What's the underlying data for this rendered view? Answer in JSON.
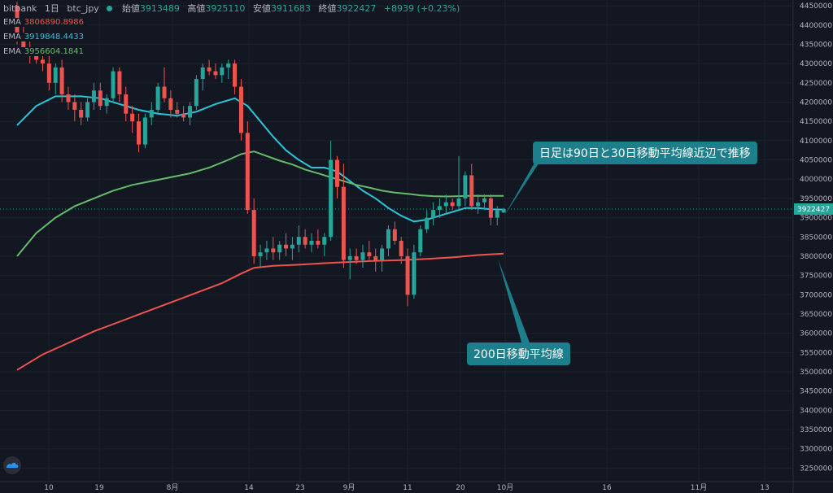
{
  "header": {
    "symbol": "bitbank",
    "interval": "1日",
    "pair": "btc_jpy",
    "open_label": "始値",
    "open": "3913489",
    "high_label": "高値",
    "high": "3925110",
    "low_label": "安値",
    "low": "3911683",
    "close_label": "終値",
    "close": "3922427",
    "change": "+8939 (+0.23%)"
  },
  "ema": [
    {
      "label": "EMA",
      "value": "3806890.8986",
      "color": "#ef5350"
    },
    {
      "label": "EMA",
      "value": "3919848.4433",
      "color": "#26c6da"
    },
    {
      "label": "EMA",
      "value": "3956604.1841",
      "color": "#66bb6a"
    }
  ],
  "annotations": {
    "top": "日足は90日と30日移動平均線近辺で推移",
    "bottom": "200日移動平均線"
  },
  "price_tag": "3922427",
  "chart_data": {
    "type": "candlestick",
    "x_ticks": [
      "10",
      "19",
      "8月",
      "14",
      "23",
      "9月",
      "11",
      "20",
      "10月",
      "16",
      "11月",
      "13"
    ],
    "y_ticks": [
      3250000,
      3300000,
      3350000,
      3400000,
      3450000,
      3500000,
      3550000,
      3600000,
      3650000,
      3700000,
      3750000,
      3800000,
      3850000,
      3900000,
      3950000,
      4000000,
      4050000,
      4100000,
      4150000,
      4200000,
      4250000,
      4300000,
      4350000,
      4400000,
      4450000
    ],
    "ylim": [
      3215000,
      4465000
    ],
    "up_color": "#26a69a",
    "down_color": "#ef5350",
    "candles": [
      [
        4450000,
        4460000,
        4350000,
        4380000
      ],
      [
        4380000,
        4400000,
        4320000,
        4330000
      ],
      [
        4330000,
        4360000,
        4300000,
        4320000
      ],
      [
        4320000,
        4340000,
        4300000,
        4310000
      ],
      [
        4310000,
        4320000,
        4280000,
        4300000
      ],
      [
        4300000,
        4330000,
        4230000,
        4250000
      ],
      [
        4250000,
        4300000,
        4220000,
        4290000
      ],
      [
        4290000,
        4310000,
        4200000,
        4220000
      ],
      [
        4220000,
        4240000,
        4180000,
        4200000
      ],
      [
        4200000,
        4220000,
        4150000,
        4180000
      ],
      [
        4180000,
        4200000,
        4140000,
        4160000
      ],
      [
        4160000,
        4210000,
        4150000,
        4200000
      ],
      [
        4200000,
        4250000,
        4180000,
        4230000
      ],
      [
        4230000,
        4250000,
        4180000,
        4190000
      ],
      [
        4190000,
        4220000,
        4170000,
        4210000
      ],
      [
        4210000,
        4290000,
        4200000,
        4280000
      ],
      [
        4280000,
        4290000,
        4200000,
        4220000
      ],
      [
        4220000,
        4240000,
        4150000,
        4170000
      ],
      [
        4170000,
        4190000,
        4120000,
        4150000
      ],
      [
        4150000,
        4170000,
        4070000,
        4090000
      ],
      [
        4090000,
        4170000,
        4080000,
        4160000
      ],
      [
        4160000,
        4200000,
        4140000,
        4180000
      ],
      [
        4180000,
        4250000,
        4170000,
        4240000
      ],
      [
        4240000,
        4290000,
        4200000,
        4210000
      ],
      [
        4210000,
        4230000,
        4160000,
        4180000
      ],
      [
        4180000,
        4200000,
        4160000,
        4170000
      ],
      [
        4170000,
        4190000,
        4150000,
        4160000
      ],
      [
        4160000,
        4200000,
        4140000,
        4190000
      ],
      [
        4190000,
        4270000,
        4180000,
        4260000
      ],
      [
        4260000,
        4300000,
        4230000,
        4290000
      ],
      [
        4290000,
        4310000,
        4270000,
        4280000
      ],
      [
        4280000,
        4300000,
        4260000,
        4270000
      ],
      [
        4270000,
        4300000,
        4250000,
        4290000
      ],
      [
        4290000,
        4310000,
        4260000,
        4300000
      ],
      [
        4300000,
        4310000,
        4220000,
        4240000
      ],
      [
        4240000,
        4260000,
        4100000,
        4120000
      ],
      [
        4120000,
        4150000,
        3910000,
        3920000
      ],
      [
        3920000,
        3950000,
        3780000,
        3800000
      ],
      [
        3800000,
        3830000,
        3770000,
        3810000
      ],
      [
        3810000,
        3840000,
        3790000,
        3820000
      ],
      [
        3820000,
        3850000,
        3790000,
        3810000
      ],
      [
        3810000,
        3840000,
        3790000,
        3830000
      ],
      [
        3830000,
        3860000,
        3800000,
        3820000
      ],
      [
        3820000,
        3850000,
        3790000,
        3830000
      ],
      [
        3830000,
        3880000,
        3810000,
        3850000
      ],
      [
        3850000,
        3870000,
        3820000,
        3830000
      ],
      [
        3830000,
        3860000,
        3810000,
        3840000
      ],
      [
        3840000,
        3870000,
        3820000,
        3830000
      ],
      [
        3830000,
        3860000,
        3800000,
        3850000
      ],
      [
        3850000,
        4100000,
        3840000,
        4050000
      ],
      [
        4050000,
        4060000,
        3950000,
        3980000
      ],
      [
        3980000,
        4040000,
        3770000,
        3790000
      ],
      [
        3790000,
        3820000,
        3740000,
        3800000
      ],
      [
        3800000,
        3820000,
        3780000,
        3790000
      ],
      [
        3790000,
        3830000,
        3770000,
        3810000
      ],
      [
        3810000,
        3840000,
        3790000,
        3800000
      ],
      [
        3800000,
        3820000,
        3760000,
        3790000
      ],
      [
        3790000,
        3830000,
        3760000,
        3820000
      ],
      [
        3820000,
        3880000,
        3800000,
        3870000
      ],
      [
        3870000,
        3890000,
        3830000,
        3840000
      ],
      [
        3840000,
        3850000,
        3780000,
        3800000
      ],
      [
        3800000,
        3820000,
        3670000,
        3700000
      ],
      [
        3700000,
        3830000,
        3690000,
        3810000
      ],
      [
        3810000,
        3880000,
        3800000,
        3870000
      ],
      [
        3870000,
        3920000,
        3860000,
        3900000
      ],
      [
        3900000,
        3940000,
        3880000,
        3920000
      ],
      [
        3920000,
        3950000,
        3900000,
        3930000
      ],
      [
        3930000,
        3960000,
        3910000,
        3940000
      ],
      [
        3940000,
        3950000,
        3920000,
        3930000
      ],
      [
        3930000,
        4060000,
        3920000,
        3950000
      ],
      [
        3950000,
        4020000,
        3930000,
        4010000
      ],
      [
        4010000,
        4040000,
        3920000,
        3930000
      ],
      [
        3930000,
        3960000,
        3910000,
        3940000
      ],
      [
        3940000,
        3960000,
        3920000,
        3950000
      ],
      [
        3950000,
        3960000,
        3880000,
        3900000
      ],
      [
        3900000,
        3930000,
        3880000,
        3920000
      ],
      [
        3913489,
        3925110,
        3911683,
        3922427
      ]
    ],
    "series": [
      {
        "label": "EMA",
        "color": "#26c6da",
        "x": [
          0,
          3,
          6,
          10,
          13,
          16,
          19,
          22,
          25,
          28,
          31,
          34,
          36,
          38,
          40,
          42,
          44,
          46,
          48,
          50,
          52,
          54,
          56,
          58,
          60,
          62,
          64,
          66,
          68,
          70,
          72,
          74,
          76
        ],
        "y": [
          4140000,
          4190000,
          4215000,
          4215000,
          4210000,
          4195000,
          4180000,
          4170000,
          4165000,
          4175000,
          4195000,
          4210000,
          4190000,
          4150000,
          4110000,
          4075000,
          4050000,
          4030000,
          4030000,
          4020000,
          3995000,
          3970000,
          3950000,
          3925000,
          3905000,
          3890000,
          3895000,
          3905000,
          3915000,
          3925000,
          3925000,
          3922000,
          3921000
        ]
      },
      {
        "label": "EMA",
        "color": "#66bb6a",
        "x": [
          0,
          3,
          6,
          9,
          12,
          15,
          18,
          21,
          24,
          27,
          30,
          33,
          35,
          37,
          39,
          41,
          43,
          45,
          47,
          49,
          51,
          53,
          55,
          57,
          59,
          61,
          63,
          65,
          67,
          69,
          71,
          73,
          76
        ],
        "y": [
          3800000,
          3860000,
          3900000,
          3930000,
          3950000,
          3970000,
          3985000,
          3995000,
          4005000,
          4015000,
          4030000,
          4050000,
          4065000,
          4072000,
          4060000,
          4048000,
          4038000,
          4025000,
          4015000,
          4005000,
          3995000,
          3985000,
          3978000,
          3970000,
          3965000,
          3962000,
          3958000,
          3956000,
          3955000,
          3956000,
          3957000,
          3956800,
          3956600
        ]
      },
      {
        "label": "EMA",
        "color": "#ef5350",
        "x": [
          0,
          4,
          8,
          12,
          16,
          20,
          24,
          28,
          32,
          35,
          37,
          40,
          44,
          48,
          52,
          56,
          60,
          64,
          68,
          72,
          76
        ],
        "y": [
          3505000,
          3545000,
          3575000,
          3605000,
          3630000,
          3655000,
          3680000,
          3705000,
          3730000,
          3755000,
          3770000,
          3775000,
          3778000,
          3782000,
          3785000,
          3788000,
          3790000,
          3793000,
          3797000,
          3803000,
          3806890
        ]
      }
    ]
  }
}
